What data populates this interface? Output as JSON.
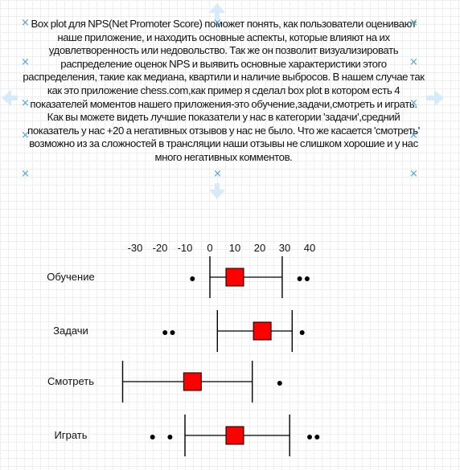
{
  "description": "Box plot для NPS(Net Promoter Score) поможет понять, как пользователи оценивают наше приложение, и находить основные аспекты, которые влияют на их удовлетворенность или недовольство. Так же он позволит визуализировать распределение оценок NPS и выявить основные характеристики этого распределения, такие как медиана, квартили и наличие выбросов. В нашем случае так как это приложение chess.com,как пример я сделал box plot в котором есть 4 показателей моментов нашего приложения-это обучение,задачи,смотреть и играть. Как вы можете видеть лучшие показатели у нас в категории 'задачи',средний показатель у нас +20 а негативных отзывов у нас не было. Что же касается 'смотреть' возможно из за сложностей в трансляции наши отзывы не слишком хорошие и у нас много негативных комментов.",
  "colors": {
    "accent": "#ff0000",
    "line": "#000000",
    "selection": "#4aa3df"
  },
  "icons": [
    "selection-handle-icon",
    "arrow-up-icon",
    "arrow-down-icon",
    "arrow-left-icon",
    "arrow-right-icon"
  ],
  "chart_data": {
    "type": "box",
    "xlim": [
      -30,
      40
    ],
    "xticks": [
      "-30",
      "-20",
      "-10",
      "0",
      "10",
      "20",
      "30",
      "40"
    ],
    "tick_values": [
      -30,
      -20,
      -10,
      0,
      10,
      20,
      30,
      40
    ],
    "series": [
      {
        "name": "Обучение",
        "whisker_low": 0,
        "whisker_high": 29,
        "center": 10,
        "outliers": [
          -7,
          36,
          39
        ]
      },
      {
        "name": "Задачи",
        "whisker_low": 3,
        "whisker_high": 33,
        "center": 21,
        "outliers": [
          -18,
          -15,
          37
        ]
      },
      {
        "name": "Смотреть",
        "whisker_low": -35,
        "whisker_high": 17,
        "center": -7,
        "outliers": [
          28
        ]
      },
      {
        "name": "Играть",
        "whisker_low": -10,
        "whisker_high": 32,
        "center": 10,
        "outliers": [
          -23,
          -16,
          40,
          43
        ]
      }
    ]
  }
}
